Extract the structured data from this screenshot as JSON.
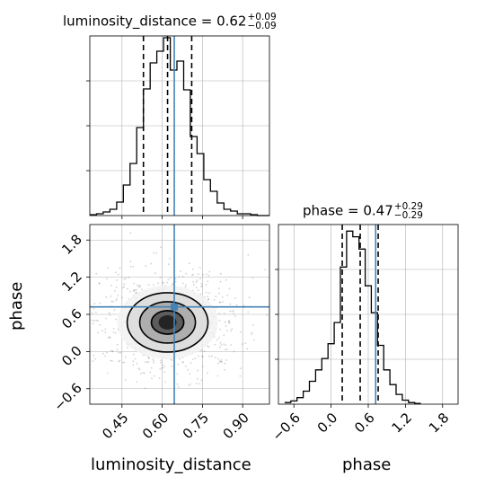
{
  "colors": {
    "truth": "#4682b4",
    "hist": "#000000",
    "grid": "#b0b0b0",
    "background": "#ffffff"
  },
  "titles": {
    "p1": {
      "name": "luminosity_distance",
      "value": "0.62",
      "plus": "+0.09",
      "minus": "−0.09"
    },
    "p2": {
      "name": "phase",
      "value": "0.47",
      "plus": "+0.29",
      "minus": "−0.29"
    }
  },
  "labels": {
    "x_left": "luminosity_distance",
    "x_right": "phase",
    "y_left": "phase"
  },
  "chart_data": [
    {
      "type": "histogram",
      "panel": "luminosity_distance marginal",
      "x_range": [
        0.33,
        1.0
      ],
      "bin_edges": [
        0.33,
        0.355,
        0.38,
        0.405,
        0.43,
        0.455,
        0.48,
        0.505,
        0.53,
        0.555,
        0.58,
        0.605,
        0.63,
        0.655,
        0.68,
        0.705,
        0.73,
        0.755,
        0.78,
        0.805,
        0.83,
        0.855,
        0.88,
        0.905,
        0.93,
        0.955,
        0.98,
        1.0
      ],
      "counts": [
        1,
        2,
        4,
        7,
        15,
        34,
        58,
        98,
        141,
        170,
        183,
        198,
        162,
        172,
        140,
        88,
        69,
        40,
        27,
        14,
        7,
        5,
        2,
        2,
        1,
        0,
        0
      ],
      "ylim": [
        0,
        200
      ],
      "quantiles": [
        0.53,
        0.62,
        0.71
      ],
      "truth": 0.645
    },
    {
      "type": "scatter",
      "panel": "luminosity_distance vs phase (2D density with contours)",
      "x_range": [
        0.33,
        1.0
      ],
      "y_range": [
        -0.85,
        2.05
      ],
      "x_ticks": [
        "0.45",
        "0.60",
        "0.75",
        "0.90"
      ],
      "y_ticks": [
        "1.8",
        "1.2",
        "0.6",
        "0.0",
        "−0.6"
      ],
      "center": {
        "x": 0.62,
        "y": 0.47
      },
      "spread": {
        "x": 0.065,
        "y": 0.29
      },
      "truth": {
        "x": 0.645,
        "y": 0.72
      }
    },
    {
      "type": "histogram",
      "panel": "phase marginal",
      "x_range": [
        -0.85,
        2.05
      ],
      "bin_edges": [
        -0.75,
        -0.65,
        -0.55,
        -0.45,
        -0.35,
        -0.25,
        -0.15,
        -0.05,
        0.05,
        0.15,
        0.25,
        0.35,
        0.45,
        0.55,
        0.65,
        0.75,
        0.85,
        0.95,
        1.05,
        1.15,
        1.25,
        1.35,
        1.45
      ],
      "counts": [
        2,
        4,
        8,
        16,
        28,
        42,
        56,
        74,
        100,
        168,
        212,
        205,
        190,
        145,
        112,
        72,
        42,
        24,
        12,
        5,
        2,
        1
      ],
      "ylim": [
        0,
        220
      ],
      "quantiles": [
        0.18,
        0.47,
        0.76
      ],
      "truth": 0.72,
      "x_ticks": [
        "−0.6",
        "0.0",
        "0.6",
        "1.2",
        "1.8"
      ]
    }
  ]
}
